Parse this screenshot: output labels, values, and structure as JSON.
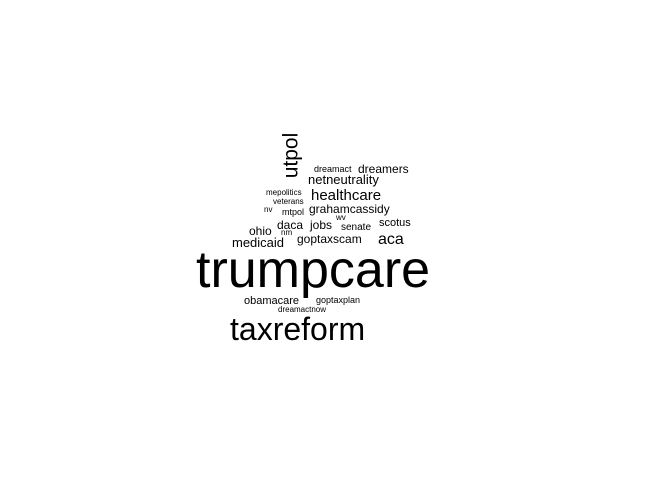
{
  "chart_data": {
    "type": "wordcloud",
    "title": "",
    "words": [
      {
        "text": "trumpcare",
        "weight": 100
      },
      {
        "text": "taxreform",
        "weight": 60
      },
      {
        "text": "utpol",
        "weight": 38
      },
      {
        "text": "healthcare",
        "weight": 30
      },
      {
        "text": "aca",
        "weight": 30
      },
      {
        "text": "netneutrality",
        "weight": 24
      },
      {
        "text": "medicaid",
        "weight": 24
      },
      {
        "text": "grahamcassidy",
        "weight": 22
      },
      {
        "text": "ohio",
        "weight": 22
      },
      {
        "text": "jobs",
        "weight": 22
      },
      {
        "text": "daca",
        "weight": 21
      },
      {
        "text": "goptaxscam",
        "weight": 21
      },
      {
        "text": "dreamers",
        "weight": 20
      },
      {
        "text": "scotus",
        "weight": 19
      },
      {
        "text": "obamacare",
        "weight": 17
      },
      {
        "text": "senate",
        "weight": 16
      },
      {
        "text": "dreamact",
        "weight": 14
      },
      {
        "text": "mtpol",
        "weight": 14
      },
      {
        "text": "goptaxplan",
        "weight": 13
      },
      {
        "text": "mepolitics",
        "weight": 12
      },
      {
        "text": "veterans",
        "weight": 12
      },
      {
        "text": "nv",
        "weight": 12
      },
      {
        "text": "wv",
        "weight": 12
      },
      {
        "text": "nm",
        "weight": 12
      },
      {
        "text": "dreamactnow",
        "weight": 11
      }
    ]
  },
  "colors": {
    "text": "#000000",
    "background": "#ffffff"
  }
}
